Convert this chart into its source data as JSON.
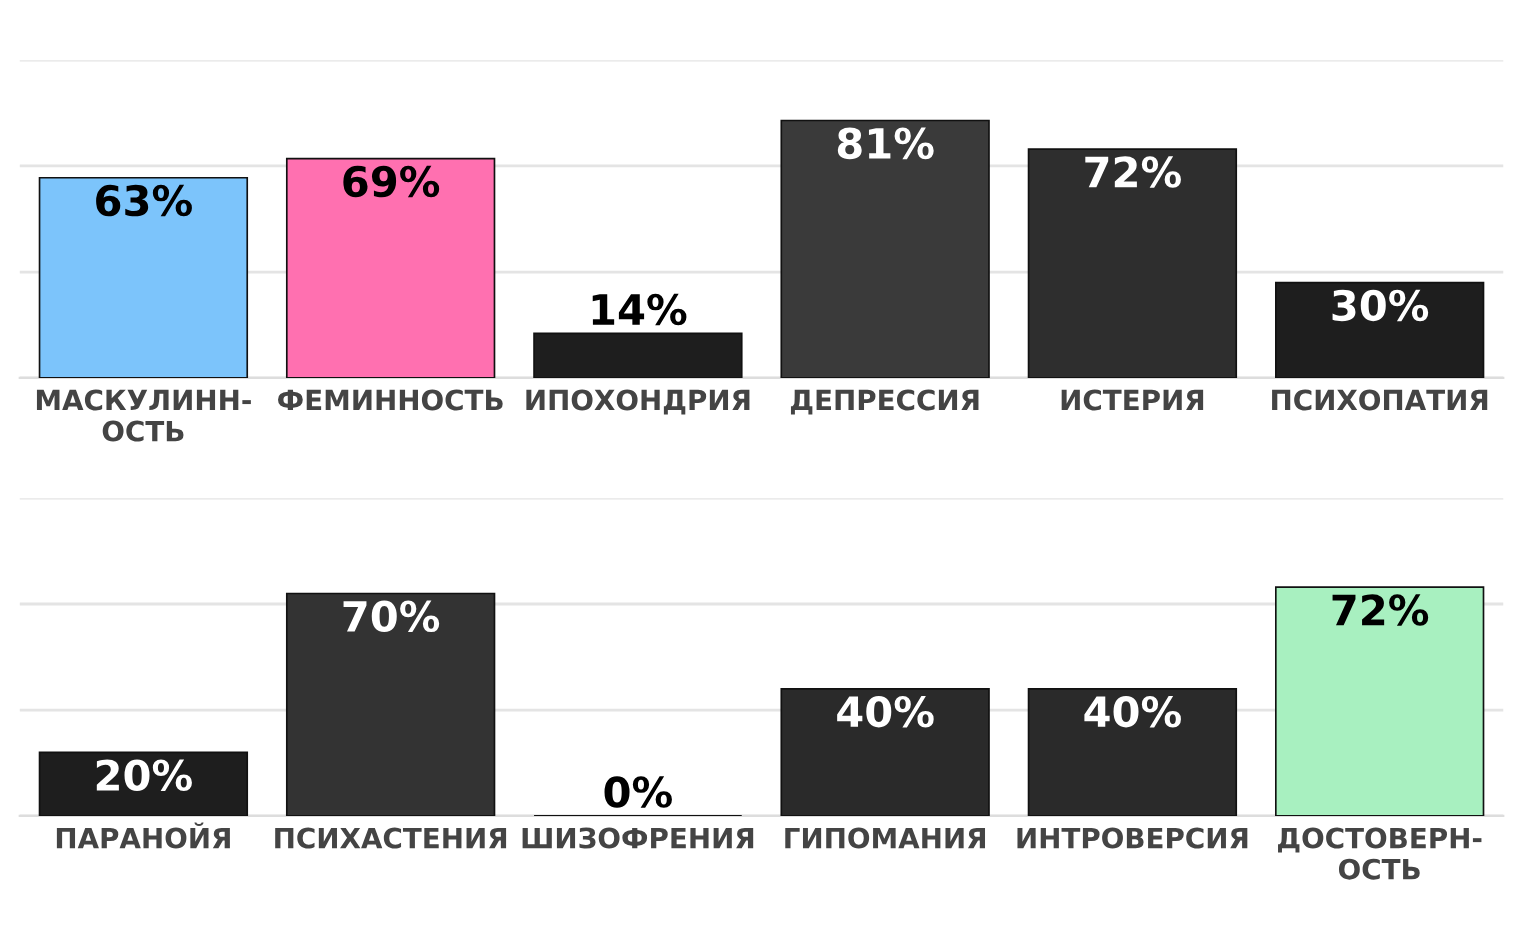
{
  "chart_data": [
    {
      "type": "bar",
      "categories": [
        "МАСКУЛИНН-\nОСТЬ",
        "ФЕМИННОСТЬ",
        "ИПОХОНДРИЯ",
        "ДЕПРЕССИЯ",
        "ИСТЕРИЯ",
        "ПСИХОПАТИЯ"
      ],
      "values": [
        63,
        69,
        14,
        81,
        72,
        30
      ],
      "colors": [
        "#7cc4fb",
        "#ff70b0",
        "#1e1e1e",
        "#3a3a3a",
        "#2e2e2e",
        "#1e1e1e"
      ],
      "value_labels": [
        "63%",
        "69%",
        "14%",
        "81%",
        "72%",
        "30%"
      ],
      "ylim": [
        0,
        100
      ],
      "yticks": [
        {
          "value": 0,
          "label": null
        },
        {
          "value": 33.3,
          "label": null
        },
        {
          "value": 66.7,
          "label": null
        },
        {
          "value": 100,
          "label": null
        }
      ],
      "tick_labels": "x",
      "grid": "y"
    },
    {
      "type": "bar",
      "categories": [
        "ПАРАНОЙЯ",
        "ПСИХАСТЕНИЯ",
        "ШИЗОФРЕНИЯ",
        "ГИПОМАНИЯ",
        "ИНТРОВЕРСИЯ",
        "ДОСТОВЕРН-\nОСТЬ"
      ],
      "values": [
        20,
        70,
        0,
        40,
        40,
        72
      ],
      "colors": [
        "#1e1e1e",
        "#333333",
        "#1e1e1e",
        "#2a2a2a",
        "#2a2a2a",
        "#a8f0c0"
      ],
      "value_labels": [
        "20%",
        "70%",
        "0%",
        "40%",
        "40%",
        "72%"
      ],
      "ylim": [
        0,
        100
      ],
      "yticks": [
        {
          "value": 0,
          "label": null
        },
        {
          "value": 33.3,
          "label": null
        },
        {
          "value": 66.7,
          "label": null
        },
        {
          "value": 100,
          "label": null
        }
      ],
      "tick_labels": "x",
      "grid": "y"
    }
  ]
}
